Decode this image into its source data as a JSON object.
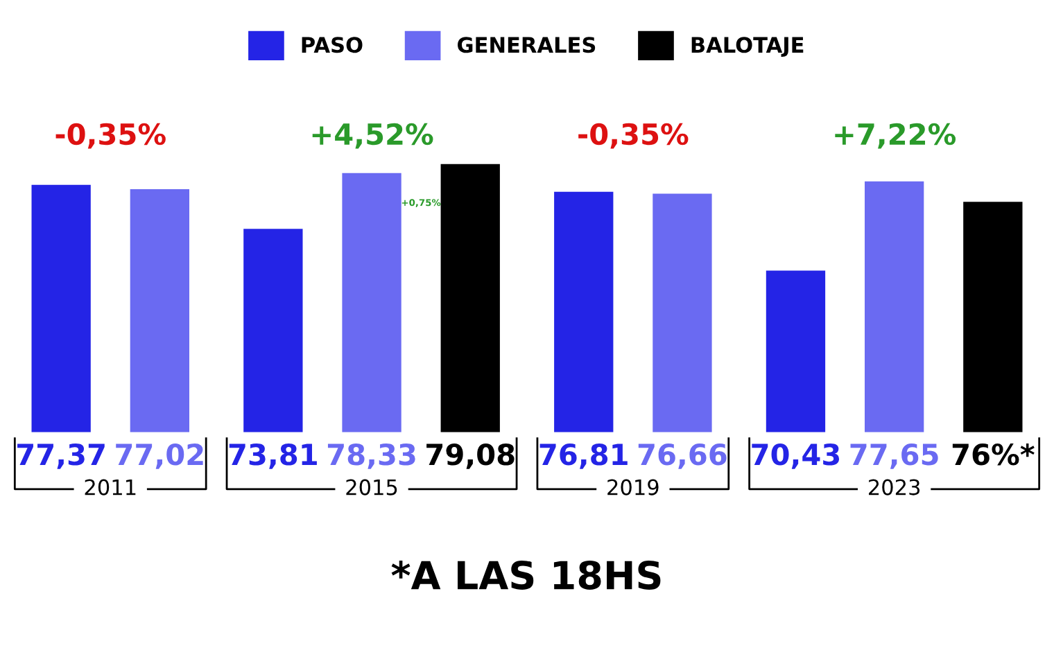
{
  "chart_data": {
    "type": "bar",
    "categories": [
      "2011",
      "2015",
      "2019",
      "2023"
    ],
    "series": [
      {
        "name": "PASO",
        "color": "#2424e6",
        "values": [
          77.37,
          73.81,
          76.81,
          70.43
        ],
        "value_labels": [
          "77,37",
          "73,81",
          "76,81",
          "70,43"
        ]
      },
      {
        "name": "GENERALES",
        "color": "#6a6af2",
        "values": [
          77.02,
          78.33,
          76.66,
          77.65
        ],
        "value_labels": [
          "77,02",
          "78,33",
          "76,66",
          "77,65"
        ]
      },
      {
        "name": "BALOTAJE",
        "color": "#000000",
        "values": [
          null,
          79.08,
          null,
          76
        ],
        "value_labels": [
          null,
          "79,08",
          null,
          "76%*"
        ]
      }
    ],
    "ylim": [
      57.35,
      79.08
    ],
    "legend": "top",
    "annotations": [
      "-0,35%",
      "+4,52%",
      "+0,75%",
      "-0,35%",
      "+7,22%",
      "*A LAS 18HS"
    ]
  }
}
